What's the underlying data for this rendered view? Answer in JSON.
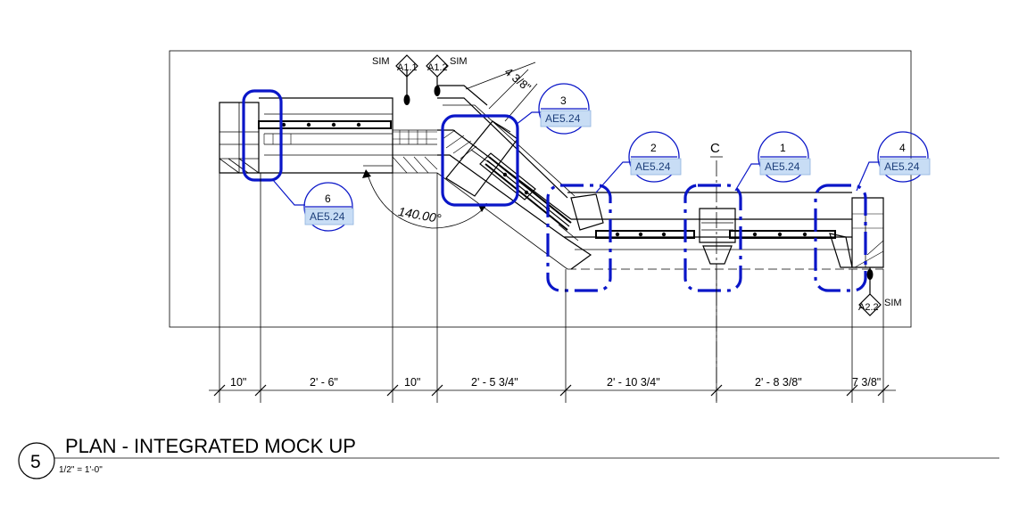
{
  "title": {
    "number": "5",
    "text": "PLAN - INTEGRATED MOCK UP",
    "scale": "1/2\" = 1'-0\""
  },
  "dimensions": [
    "10\"",
    "2' - 6\"",
    "10\"",
    "2' - 5 3/4\"",
    "2' - 10 3/4\"",
    "2' - 8 3/8\"",
    "7 3/8\""
  ],
  "detail_callouts": [
    {
      "number": "6",
      "sheet": "AE5.24"
    },
    {
      "number": "3",
      "sheet": "AE5.24"
    },
    {
      "number": "2",
      "sheet": "AE5.24"
    },
    {
      "number": "1",
      "sheet": "AE5.24"
    },
    {
      "number": "4",
      "sheet": "AE5.24"
    }
  ],
  "section_tags": [
    {
      "id": "A1.1",
      "label": "SIM"
    },
    {
      "id": "A1.2",
      "label": "SIM"
    },
    {
      "id": "A2.2",
      "label": "SIM"
    }
  ],
  "angle_label": "140.00°",
  "angled_dimension": "4 3/8\"",
  "centerline_symbol": "C",
  "colors": {
    "cloud": "#0a16c8",
    "sheet_fill": "#c8ddf5",
    "line": "#000000"
  }
}
